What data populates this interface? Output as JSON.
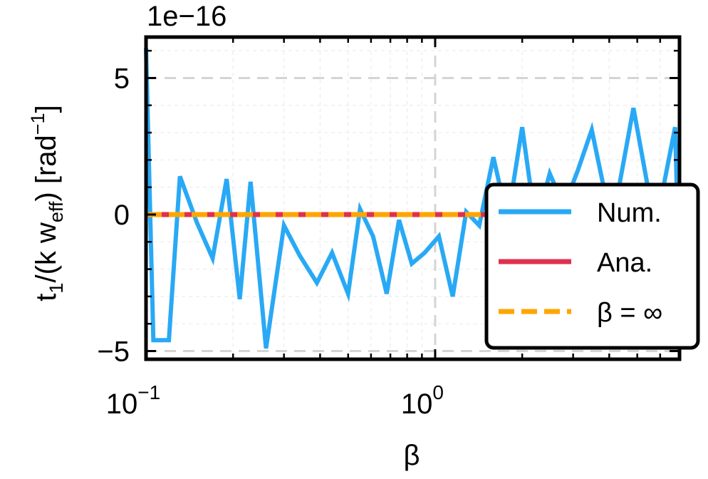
{
  "chart_data": {
    "type": "line",
    "title": "",
    "xlabel": "β",
    "ylabel": "t₁/(k w_eff) [rad⁻¹]",
    "ylabel_parts": {
      "t": "t",
      "t_sub": "1",
      "mid": "/(k w",
      "w_sub": "eff",
      "end": ") [rad",
      "rad_sup": "−1",
      "close": "]"
    },
    "offset_label": "1e−16",
    "xscale": "log",
    "xlim": [
      0.1,
      7.0
    ],
    "ylim": [
      -5.3,
      6.5
    ],
    "scale_factor": 1e-16,
    "x_ticks": [
      {
        "value": 0.1,
        "base": "10",
        "exp": "−1"
      },
      {
        "value": 1.0,
        "base": "10",
        "exp": "0"
      }
    ],
    "y_ticks": [
      {
        "value": -5,
        "label": "−5"
      },
      {
        "value": 0,
        "label": "0"
      },
      {
        "value": 5,
        "label": "5"
      }
    ],
    "grid": true,
    "legend_position": "center-right",
    "series": [
      {
        "name": "Num.",
        "color": "#29a9f5",
        "style": "solid",
        "x": [
          0.1,
          0.106,
          0.12,
          0.131,
          0.15,
          0.17,
          0.19,
          0.211,
          0.23,
          0.26,
          0.3,
          0.34,
          0.39,
          0.44,
          0.5,
          0.55,
          0.61,
          0.68,
          0.75,
          0.83,
          0.92,
          1.03,
          1.15,
          1.28,
          1.42,
          1.59,
          1.78,
          2.0,
          2.23,
          2.49,
          2.79,
          3.11,
          3.48,
          3.88,
          4.34,
          4.85,
          5.42,
          6.05,
          6.76,
          6.9
        ],
        "y": [
          6.1,
          -4.6,
          -4.6,
          1.4,
          -0.3,
          -1.6,
          1.3,
          -3.1,
          1.2,
          -4.9,
          -0.4,
          -1.5,
          -2.5,
          -1.4,
          -2.9,
          0.2,
          -0.8,
          -2.9,
          -0.2,
          -1.8,
          -1.4,
          -0.8,
          -3.0,
          0.1,
          -0.4,
          2.1,
          -0.2,
          3.2,
          -0.4,
          1.5,
          0.3,
          1.6,
          3.1,
          0.7,
          1.1,
          3.9,
          1.1,
          0.6,
          3.2,
          -0.2
        ]
      },
      {
        "name": "Ana.",
        "color": "#e0304e",
        "style": "solid",
        "x": [
          0.1,
          7.0
        ],
        "y": [
          0,
          0
        ]
      },
      {
        "name": "β = ∞",
        "color": "#ffa500",
        "style": "dashed",
        "x": [
          0.1,
          7.0
        ],
        "y": [
          0,
          0
        ]
      }
    ]
  }
}
